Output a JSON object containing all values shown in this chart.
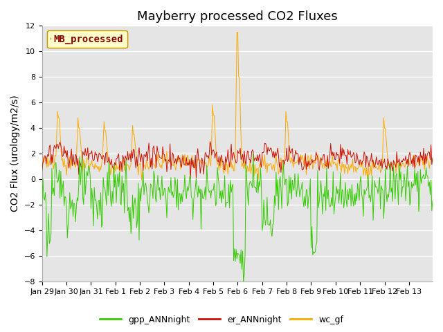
{
  "title": "Mayberry processed CO2 Fluxes",
  "ylabel": "CO2 Flux (urology/m2/s)",
  "ylim": [
    -8,
    12
  ],
  "yticks": [
    -8,
    -6,
    -4,
    -2,
    0,
    2,
    4,
    6,
    8,
    10,
    12
  ],
  "background_color": "#e5e5e5",
  "figure_background": "#ffffff",
  "grid_color": "#ffffff",
  "line_colors": {
    "gpp_ANNnight": "#33cc00",
    "er_ANNnight": "#cc1100",
    "wc_gf": "#ffaa00"
  },
  "legend_label": "MB_processed",
  "legend_box_facecolor": "#ffffcc",
  "legend_box_edgecolor": "#cc9900",
  "x_tick_labels": [
    "Jan 29",
    "Jan 30",
    "Jan 31",
    "Feb 1",
    "Feb 2",
    "Feb 3",
    "Feb 4",
    "Feb 5",
    "Feb 6",
    "Feb 7",
    "Feb 8",
    "Feb 9",
    "Feb 10",
    "Feb 11",
    "Feb 12",
    "Feb 13"
  ],
  "title_fontsize": 13,
  "axis_fontsize": 10,
  "tick_fontsize": 8,
  "legend_fontsize": 9,
  "linewidth": 0.7
}
